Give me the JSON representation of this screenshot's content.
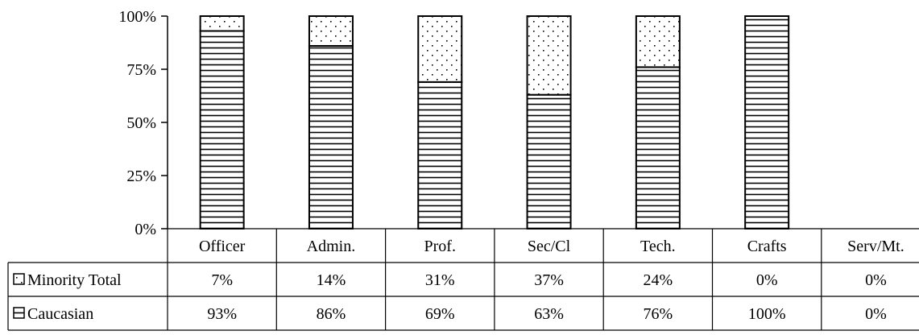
{
  "chart_data": {
    "type": "bar",
    "stacked": true,
    "percent": true,
    "categories": [
      "Officer",
      "Admin.",
      "Prof.",
      "Sec/Cl",
      "Tech.",
      "Crafts",
      "Serv/Mt."
    ],
    "series": [
      {
        "name": "Caucasian",
        "values": [
          93,
          86,
          69,
          63,
          76,
          100,
          0
        ],
        "labels": [
          "93%",
          "86%",
          "69%",
          "63%",
          "76%",
          "100%",
          "0%"
        ],
        "pattern": "horizontal-lines"
      },
      {
        "name": "Minority Total",
        "values": [
          7,
          14,
          31,
          37,
          24,
          0,
          0
        ],
        "labels": [
          "7%",
          "14%",
          "31%",
          "37%",
          "24%",
          "0%",
          "0%"
        ],
        "pattern": "dots"
      }
    ],
    "yticks": [
      "0%",
      "25%",
      "50%",
      "75%",
      "100%"
    ],
    "ylim": [
      0,
      100
    ],
    "data_table": true,
    "legend_placement": "in data table",
    "grid": false
  }
}
